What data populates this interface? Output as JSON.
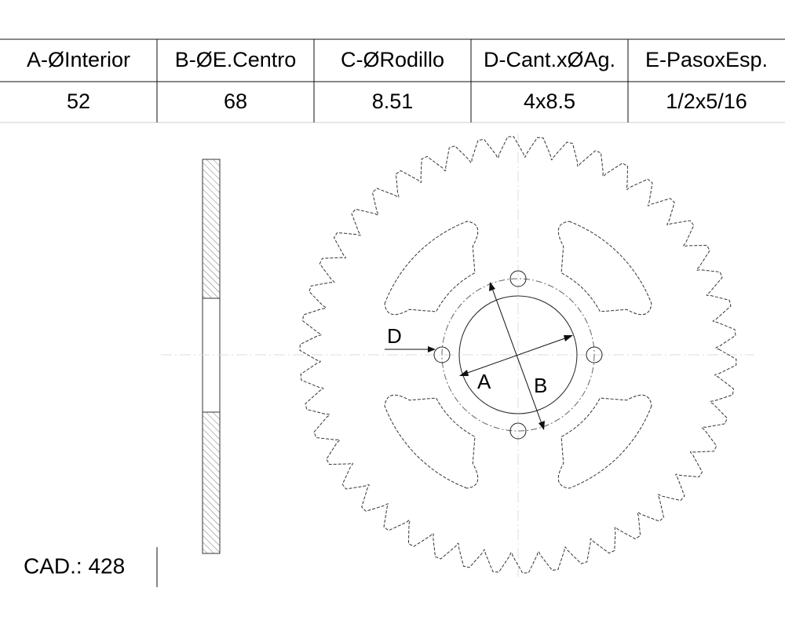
{
  "table": {
    "headers": [
      "A-ØInterior",
      "B-ØE.Centro",
      "C-ØRodillo",
      "D-Cant.xØAg.",
      "E-PasoxEsp."
    ],
    "rows": [
      [
        "52",
        "68",
        "8.51",
        "4x8.5",
        "1/2x5/16"
      ]
    ]
  },
  "cad": "CAD.: 428",
  "labels": {
    "d": "D",
    "a": "A",
    "b": "B"
  }
}
